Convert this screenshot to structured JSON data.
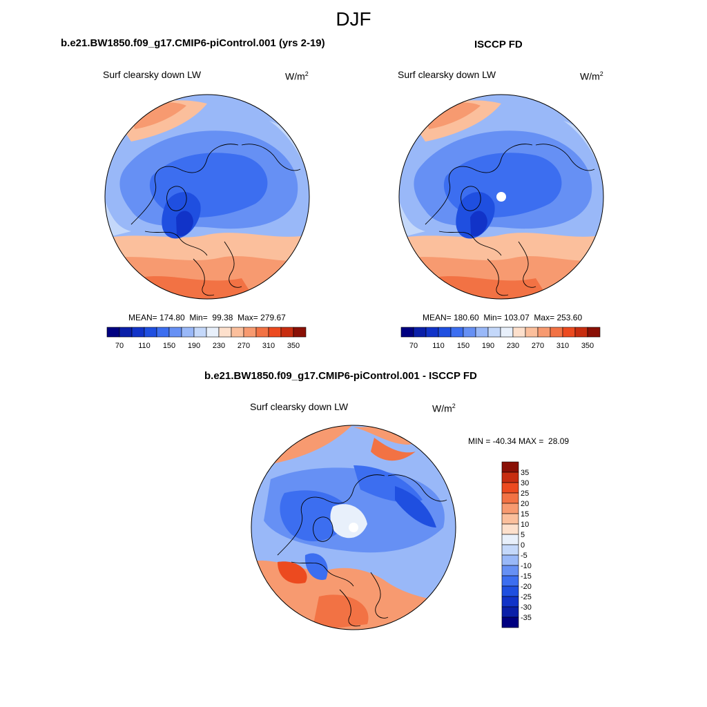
{
  "season": "DJF",
  "panels": [
    {
      "title": "b.e21.BW1850.f09_g17.CMIP6-piControl.001 (yrs 2-19)",
      "variable": "Surf clearsky down LW",
      "units_base": "W/m",
      "units_exp": "2",
      "stats": "MEAN= 174.80  Min=  99.38  Max= 279.67"
    },
    {
      "title": "ISCCP FD",
      "variable": "Surf clearsky down LW",
      "units_base": "W/m",
      "units_exp": "2",
      "stats": "MEAN= 180.60  Min= 103.07  Max= 253.60"
    },
    {
      "title": "b.e21.BW1850.f09_g17.CMIP6-piControl.001 - ISCCP FD",
      "variable": "Surf clearsky down LW",
      "units_base": "W/m",
      "units_exp": "2",
      "stats": "MIN = -40.34 MAX =  28.09"
    }
  ],
  "colorbar_abs": {
    "colors": [
      "#000080",
      "#0a1fa8",
      "#1133c8",
      "#1f4fe0",
      "#3c6ef0",
      "#6690f4",
      "#99b8f8",
      "#c4d8fa",
      "#e8f0fb",
      "#fde0cc",
      "#fbbf9c",
      "#f79a70",
      "#f27244",
      "#ec4a1f",
      "#c72d10",
      "#8a1006"
    ],
    "labels": [
      "70",
      "110",
      "150",
      "190",
      "230",
      "270",
      "310",
      "350"
    ]
  },
  "colorbar_diff": {
    "colors": [
      "#000080",
      "#0a1fa8",
      "#1133c8",
      "#1f4fe0",
      "#3c6ef0",
      "#6690f4",
      "#99b8f8",
      "#c4d8fa",
      "#e8f0fb",
      "#fde0cc",
      "#fbbf9c",
      "#f79a70",
      "#f27244",
      "#ec4a1f",
      "#c72d10",
      "#8a1006"
    ],
    "labels": [
      "35",
      "30",
      "25",
      "20",
      "15",
      "10",
      "5",
      "0",
      "-5",
      "-10",
      "-15",
      "-20",
      "-25",
      "-30",
      "-35"
    ]
  },
  "maps": [
    {
      "type": "model",
      "pole_hole": false
    },
    {
      "type": "obs",
      "pole_hole": true
    },
    {
      "type": "diff",
      "pole_hole": true
    }
  ]
}
